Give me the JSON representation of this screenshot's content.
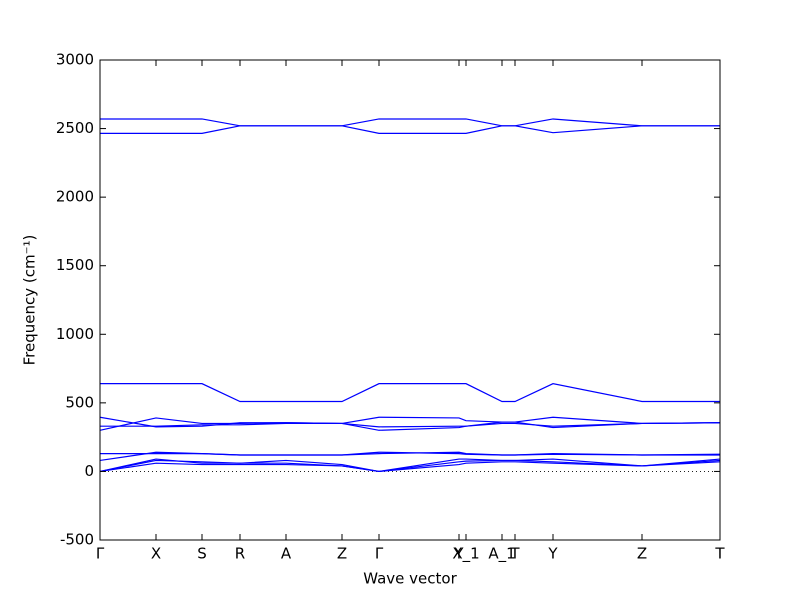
{
  "chart_data": {
    "type": "line",
    "xlabel": "Wave vector",
    "ylabel": "Frequency (cm⁻¹)",
    "x": [
      0,
      0.56,
      1.02,
      1.4,
      1.86,
      2.42,
      2.79,
      3.59,
      3.66,
      4.02,
      4.15,
      4.53,
      5.42,
      6.2
    ],
    "xlim": [
      0,
      6.2
    ],
    "xticks": [
      {
        "value": 0,
        "label": "Γ"
      },
      {
        "value": 0.56,
        "label": "X"
      },
      {
        "value": 1.02,
        "label": "S"
      },
      {
        "value": 1.4,
        "label": "R"
      },
      {
        "value": 1.86,
        "label": "A"
      },
      {
        "value": 2.42,
        "label": "Z"
      },
      {
        "value": 2.79,
        "label": "Γ"
      },
      {
        "value": 3.59,
        "label": "Y"
      },
      {
        "value": 3.66,
        "label": "X_1"
      },
      {
        "value": 4.02,
        "label": "A_1"
      },
      {
        "value": 4.15,
        "label": "T"
      },
      {
        "value": 4.53,
        "label": "Y"
      },
      {
        "value": 5.42,
        "label": "Z"
      },
      {
        "value": 6.2,
        "label": "T"
      }
    ],
    "ylim": [
      -500,
      3000
    ],
    "yticks": [
      -500,
      0,
      500,
      1000,
      1500,
      2000,
      2500,
      3000
    ],
    "hline": 0,
    "series": [
      {
        "color": "#0000ff",
        "values": [
          2570,
          2570,
          2570,
          2520,
          2520,
          2520,
          2570,
          2570,
          2570,
          2520,
          2520,
          2570,
          2520,
          2520
        ]
      },
      {
        "color": "#0000ff",
        "values": [
          2465,
          2465,
          2465,
          2520,
          2520,
          2520,
          2465,
          2465,
          2465,
          2520,
          2520,
          2470,
          2520,
          2520
        ]
      },
      {
        "color": "#0000ff",
        "values": [
          640,
          640,
          640,
          510,
          510,
          510,
          640,
          640,
          640,
          510,
          510,
          640,
          510,
          510
        ]
      },
      {
        "color": "#0000ff",
        "values": [
          395,
          325,
          330,
          355,
          355,
          350,
          300,
          320,
          330,
          360,
          360,
          320,
          350,
          355
        ]
      },
      {
        "color": "#0000ff",
        "values": [
          300,
          390,
          350,
          350,
          355,
          350,
          395,
          390,
          370,
          360,
          360,
          395,
          350,
          355
        ]
      },
      {
        "color": "#0000ff",
        "values": [
          330,
          330,
          340,
          340,
          350,
          350,
          325,
          330,
          330,
          350,
          350,
          330,
          350,
          355
        ]
      },
      {
        "color": "#0000ff",
        "values": [
          130,
          130,
          130,
          120,
          120,
          120,
          140,
          130,
          125,
          120,
          120,
          125,
          120,
          125
        ]
      },
      {
        "color": "#0000ff",
        "values": [
          80,
          140,
          130,
          120,
          120,
          120,
          130,
          140,
          130,
          120,
          120,
          130,
          120,
          120
        ]
      },
      {
        "color": "#0000ff",
        "values": [
          0,
          80,
          70,
          60,
          80,
          50,
          0,
          70,
          75,
          80,
          80,
          70,
          40,
          90
        ]
      },
      {
        "color": "#0000ff",
        "values": [
          0,
          60,
          50,
          50,
          50,
          40,
          0,
          50,
          60,
          70,
          70,
          60,
          40,
          70
        ]
      },
      {
        "color": "#0000ff",
        "values": [
          0,
          90,
          60,
          60,
          60,
          40,
          0,
          90,
          90,
          80,
          80,
          90,
          40,
          80
        ]
      }
    ]
  }
}
